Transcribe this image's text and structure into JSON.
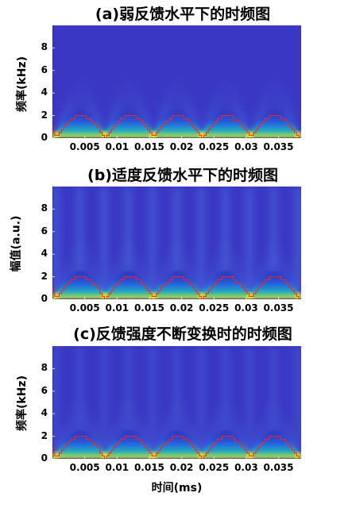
{
  "chart_data": [
    {
      "type": "heatmap",
      "title": "(a)弱反馈水平下的时频图",
      "ylabel": "频率(kHz)",
      "xlabel": "",
      "xlim": [
        0,
        0.0385
      ],
      "ylim": [
        0,
        10
      ],
      "xticks": [
        0.005,
        0.01,
        0.015,
        0.02,
        0.025,
        0.03,
        0.035
      ],
      "xtick_labels": [
        "0.005",
        "0.01",
        "0.015",
        "0.02",
        "0.025",
        "0.03",
        "0.035"
      ],
      "yticks": [
        0,
        2,
        4,
        6,
        8
      ],
      "ytick_labels": [
        "0",
        "2",
        "4",
        "6",
        "8"
      ],
      "period": 0.0075,
      "zeros": [
        0.0005,
        0.0081,
        0.0156,
        0.0231,
        0.0306,
        0.0381
      ],
      "peak": 2.0,
      "colormap": "parula",
      "ridge_color": "#ff2020"
    },
    {
      "type": "heatmap",
      "title": "(b)适度反馈水平下的时频图",
      "ylabel": "幅值(a.u.)",
      "xlabel": "",
      "xlim": [
        0,
        0.0385
      ],
      "ylim": [
        0,
        10
      ],
      "xticks": [
        0.005,
        0.01,
        0.015,
        0.02,
        0.025,
        0.03,
        0.035
      ],
      "xtick_labels": [
        "0.005",
        "0.01",
        "0.015",
        "0.02",
        "0.025",
        "0.03",
        "0.035"
      ],
      "yticks": [
        0,
        2,
        4,
        6,
        8
      ],
      "ytick_labels": [
        "0",
        "2",
        "4",
        "6",
        "8"
      ],
      "period": 0.0075,
      "zeros": [
        0.0005,
        0.0081,
        0.0156,
        0.0231,
        0.0306,
        0.0381
      ],
      "peak": 2.0,
      "colormap": "parula",
      "ridge_color": "#ff2020"
    },
    {
      "type": "heatmap",
      "title": "(c)反馈强度不断变换时的时频图",
      "ylabel": "频率(kHz)",
      "xlabel": "时间(ms)",
      "xlim": [
        0,
        0.0385
      ],
      "ylim": [
        0,
        10
      ],
      "xticks": [
        0.005,
        0.01,
        0.015,
        0.02,
        0.025,
        0.03,
        0.035
      ],
      "xtick_labels": [
        "0.005",
        "0.01",
        "0.015",
        "0.02",
        "0.025",
        "0.03",
        "0.035"
      ],
      "yticks": [
        0,
        2,
        4,
        6,
        8
      ],
      "ytick_labels": [
        "0",
        "2",
        "4",
        "6",
        "8"
      ],
      "period": 0.0075,
      "zeros": [
        0.0005,
        0.0081,
        0.0156,
        0.0231,
        0.0306,
        0.0381
      ],
      "peak": 2.0,
      "colormap": "parula",
      "ridge_color": "#ff2020"
    }
  ]
}
